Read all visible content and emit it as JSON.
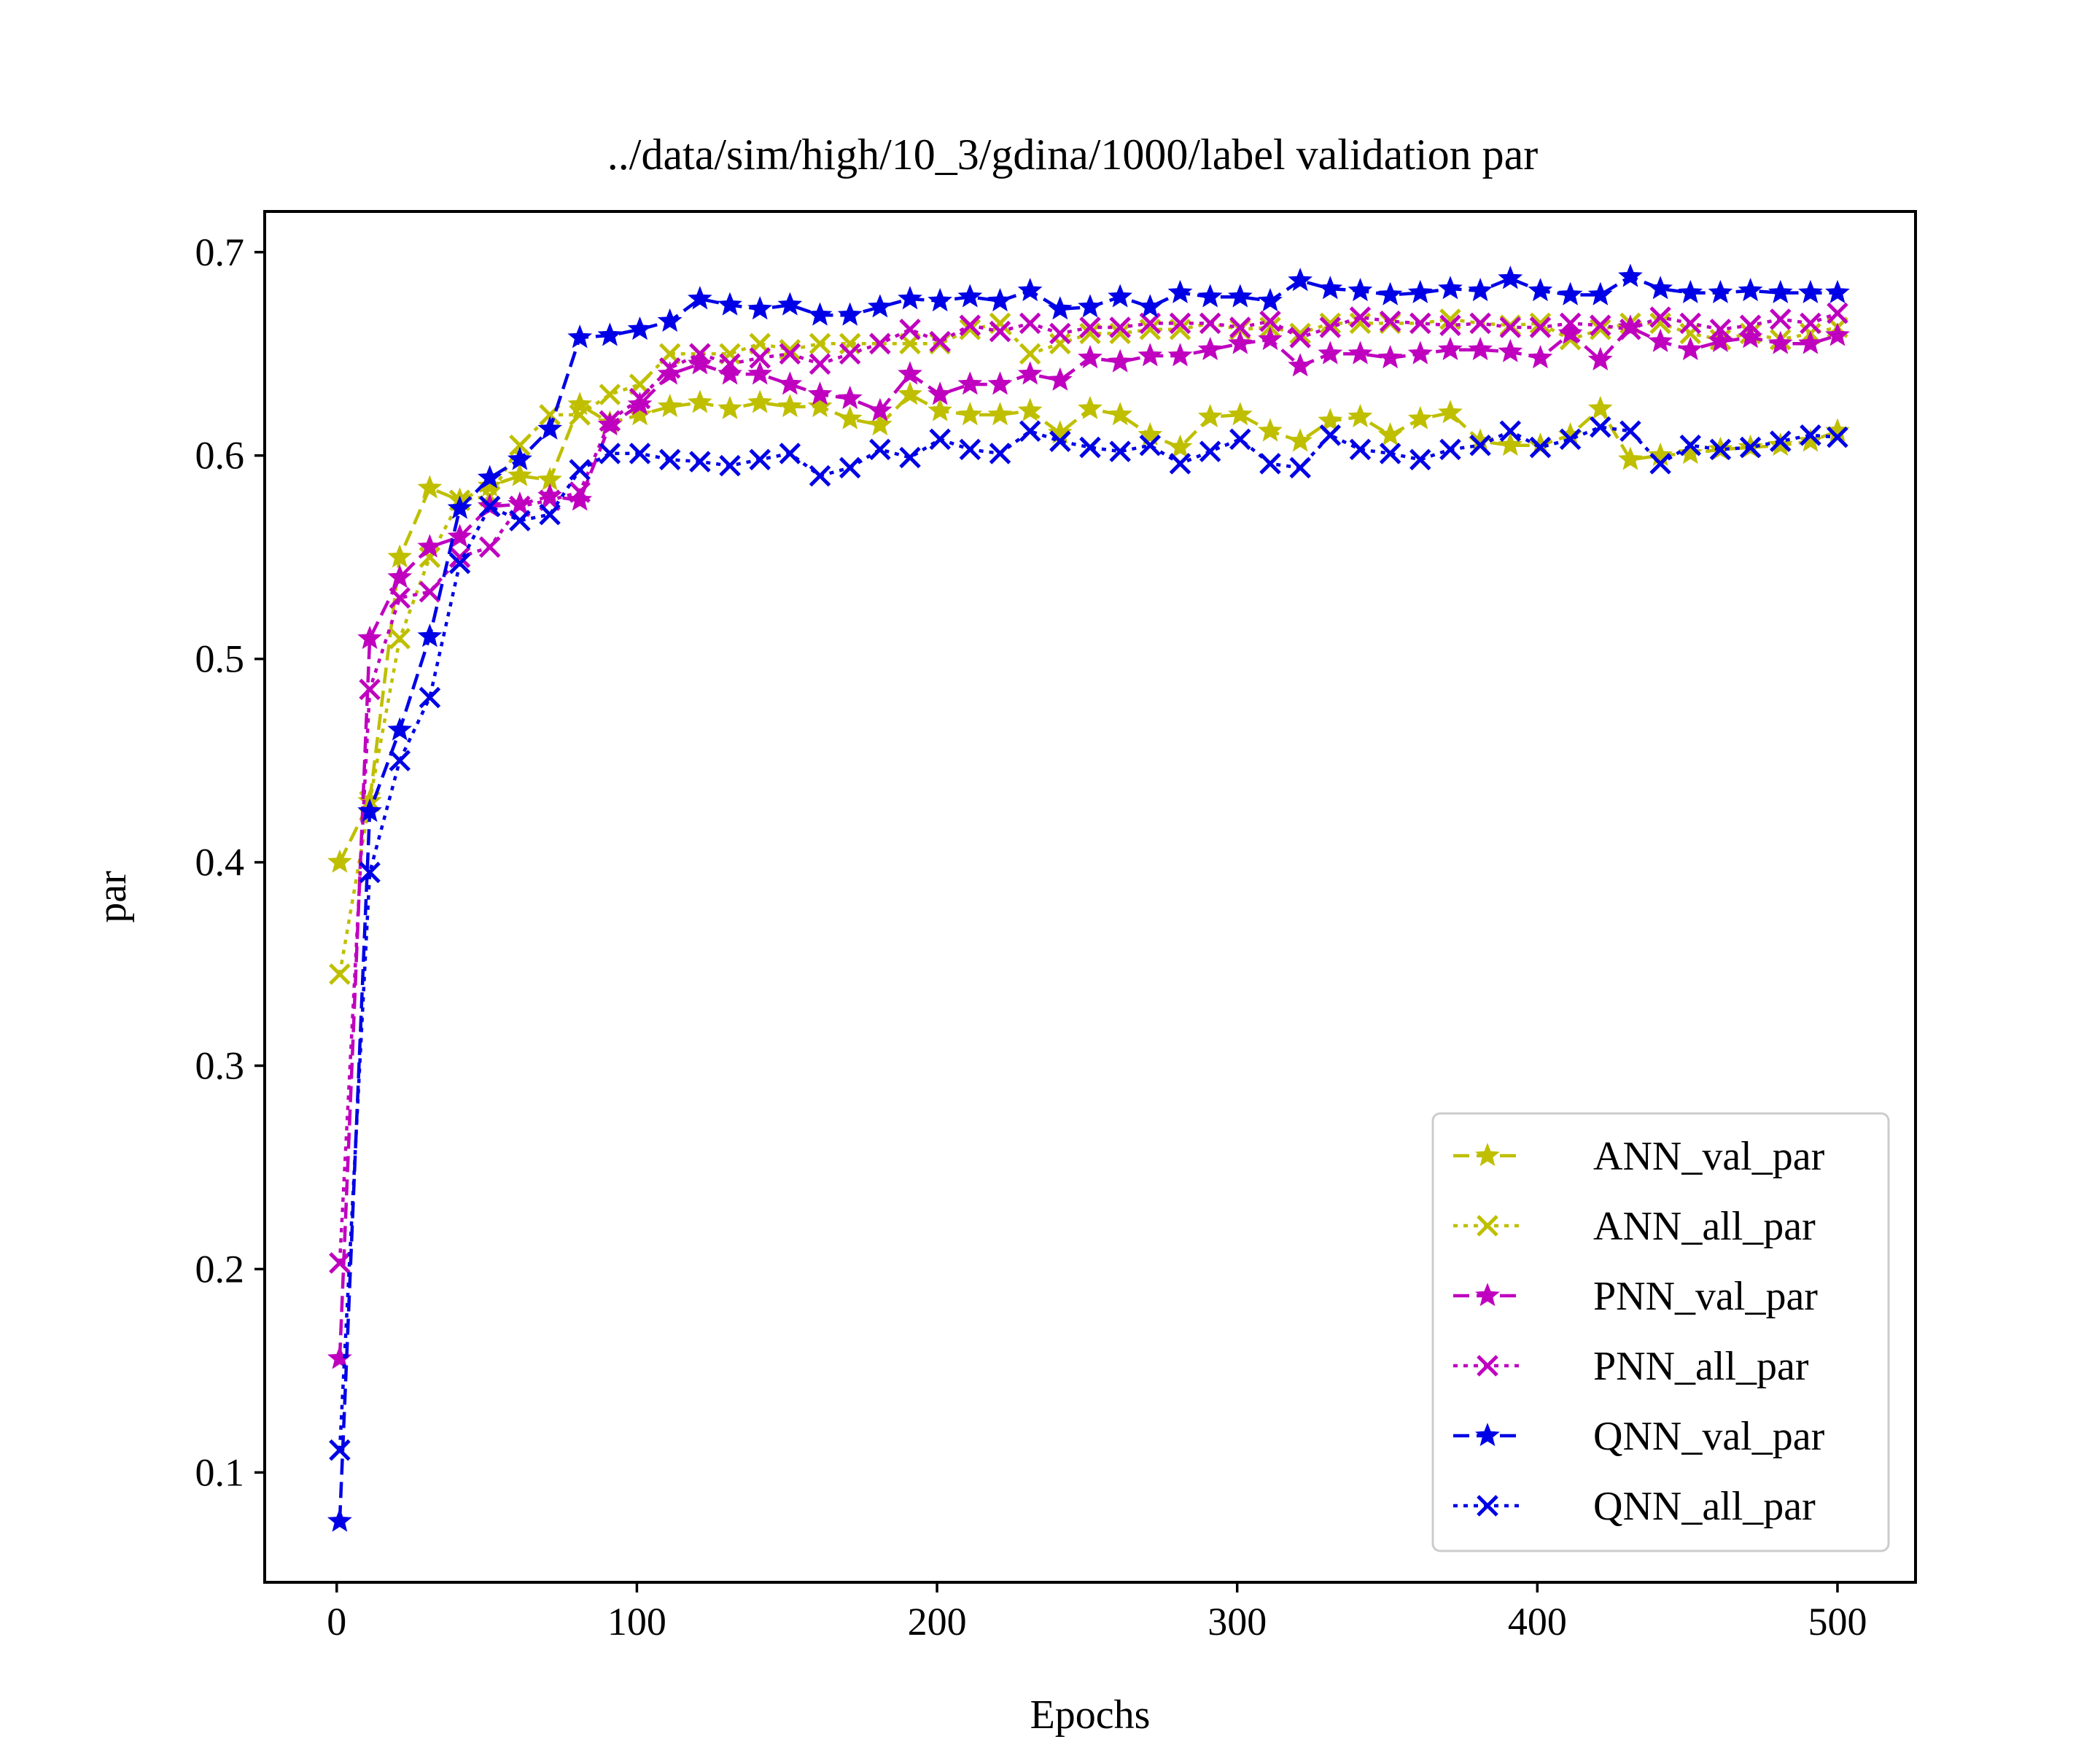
{
  "chart_data": {
    "type": "line",
    "title": "../data/sim/high/10_3/gdina/1000/label validation par",
    "xlabel": "Epochs",
    "ylabel": "par",
    "xlim": [
      -24,
      526
    ],
    "ylim": [
      0.046,
      0.72
    ],
    "xticks": [
      0,
      100,
      200,
      300,
      400,
      500
    ],
    "xtick_labels": [
      "0",
      "100",
      "200",
      "300",
      "400",
      "500"
    ],
    "yticks": [
      0.1,
      0.2,
      0.3,
      0.4,
      0.5,
      0.6,
      0.7
    ],
    "ytick_labels": [
      "0.1",
      "0.2",
      "0.3",
      "0.4",
      "0.5",
      "0.6",
      "0.7"
    ],
    "grid": false,
    "legend_position": "lower-right",
    "x": [
      1,
      11,
      21,
      31,
      41,
      51,
      61,
      71,
      81,
      91,
      101,
      111,
      121,
      131,
      141,
      151,
      161,
      171,
      181,
      191,
      201,
      211,
      221,
      231,
      241,
      251,
      261,
      271,
      281,
      291,
      301,
      311,
      321,
      331,
      341,
      351,
      361,
      371,
      381,
      391,
      401,
      411,
      421,
      431,
      441,
      451,
      461,
      471,
      481,
      491,
      500
    ],
    "series": [
      {
        "name": "ANN_val_par",
        "color": "#bfbf00",
        "linestyle": "dashed",
        "marker": "star",
        "values": [
          0.4,
          0.43,
          0.55,
          0.584,
          0.578,
          0.585,
          0.59,
          0.588,
          0.625,
          0.616,
          0.62,
          0.624,
          0.626,
          0.623,
          0.626,
          0.624,
          0.624,
          0.618,
          0.615,
          0.63,
          0.622,
          0.62,
          0.62,
          0.622,
          0.611,
          0.623,
          0.62,
          0.61,
          0.604,
          0.619,
          0.62,
          0.612,
          0.607,
          0.617,
          0.619,
          0.61,
          0.618,
          0.621,
          0.607,
          0.605,
          0.605,
          0.61,
          0.623,
          0.598,
          0.6,
          0.601,
          0.603,
          0.604,
          0.605,
          0.607,
          0.612
        ]
      },
      {
        "name": "ANN_all_par",
        "color": "#bfbf00",
        "linestyle": "dotted",
        "marker": "x",
        "values": [
          0.345,
          0.43,
          0.51,
          0.55,
          0.578,
          0.58,
          0.605,
          0.62,
          0.62,
          0.63,
          0.635,
          0.65,
          0.65,
          0.65,
          0.655,
          0.652,
          0.655,
          0.655,
          0.655,
          0.655,
          0.655,
          0.662,
          0.665,
          0.65,
          0.655,
          0.66,
          0.66,
          0.662,
          0.662,
          0.665,
          0.662,
          0.663,
          0.66,
          0.665,
          0.665,
          0.665,
          0.665,
          0.667,
          0.665,
          0.664,
          0.665,
          0.657,
          0.662,
          0.665,
          0.665,
          0.66,
          0.657,
          0.66,
          0.657,
          0.66,
          0.663
        ]
      },
      {
        "name": "PNN_val_par",
        "color": "#bf00bf",
        "linestyle": "dashed",
        "marker": "star",
        "values": [
          0.156,
          0.51,
          0.54,
          0.555,
          0.56,
          0.575,
          0.576,
          0.58,
          0.578,
          0.615,
          0.625,
          0.64,
          0.645,
          0.64,
          0.64,
          0.635,
          0.63,
          0.628,
          0.622,
          0.64,
          0.63,
          0.635,
          0.635,
          0.64,
          0.637,
          0.648,
          0.646,
          0.649,
          0.649,
          0.652,
          0.655,
          0.657,
          0.644,
          0.65,
          0.65,
          0.648,
          0.65,
          0.652,
          0.652,
          0.651,
          0.648,
          0.66,
          0.647,
          0.663,
          0.656,
          0.652,
          0.656,
          0.658,
          0.655,
          0.655,
          0.659
        ]
      },
      {
        "name": "PNN_all_par",
        "color": "#bf00bf",
        "linestyle": "dotted",
        "marker": "x",
        "values": [
          0.203,
          0.485,
          0.53,
          0.533,
          0.55,
          0.555,
          0.575,
          0.578,
          0.582,
          0.617,
          0.628,
          0.643,
          0.65,
          0.645,
          0.648,
          0.65,
          0.645,
          0.65,
          0.655,
          0.662,
          0.656,
          0.664,
          0.661,
          0.665,
          0.66,
          0.663,
          0.663,
          0.665,
          0.665,
          0.665,
          0.663,
          0.666,
          0.658,
          0.663,
          0.668,
          0.666,
          0.665,
          0.664,
          0.665,
          0.663,
          0.663,
          0.665,
          0.664,
          0.662,
          0.668,
          0.665,
          0.662,
          0.664,
          0.667,
          0.665,
          0.67
        ]
      },
      {
        "name": "QNN_val_par",
        "color": "#0000e6",
        "linestyle": "dashed",
        "marker": "star",
        "values": [
          0.076,
          0.425,
          0.465,
          0.511,
          0.574,
          0.589,
          0.598,
          0.613,
          0.658,
          0.659,
          0.662,
          0.666,
          0.677,
          0.674,
          0.672,
          0.674,
          0.669,
          0.669,
          0.673,
          0.677,
          0.676,
          0.678,
          0.676,
          0.681,
          0.672,
          0.673,
          0.678,
          0.673,
          0.68,
          0.678,
          0.678,
          0.676,
          0.686,
          0.682,
          0.681,
          0.679,
          0.68,
          0.682,
          0.681,
          0.687,
          0.681,
          0.679,
          0.679,
          0.688,
          0.682,
          0.68,
          0.68,
          0.681,
          0.68,
          0.68,
          0.68
        ]
      },
      {
        "name": "QNN_all_par",
        "color": "#0000e6",
        "linestyle": "dotted",
        "marker": "x",
        "values": [
          0.111,
          0.395,
          0.45,
          0.481,
          0.547,
          0.575,
          0.568,
          0.571,
          0.593,
          0.601,
          0.601,
          0.598,
          0.597,
          0.595,
          0.598,
          0.601,
          0.59,
          0.594,
          0.603,
          0.599,
          0.608,
          0.603,
          0.601,
          0.612,
          0.607,
          0.604,
          0.602,
          0.605,
          0.596,
          0.602,
          0.608,
          0.596,
          0.594,
          0.61,
          0.603,
          0.601,
          0.598,
          0.603,
          0.605,
          0.612,
          0.604,
          0.608,
          0.614,
          0.612,
          0.596,
          0.605,
          0.603,
          0.604,
          0.607,
          0.61,
          0.609
        ]
      }
    ]
  }
}
